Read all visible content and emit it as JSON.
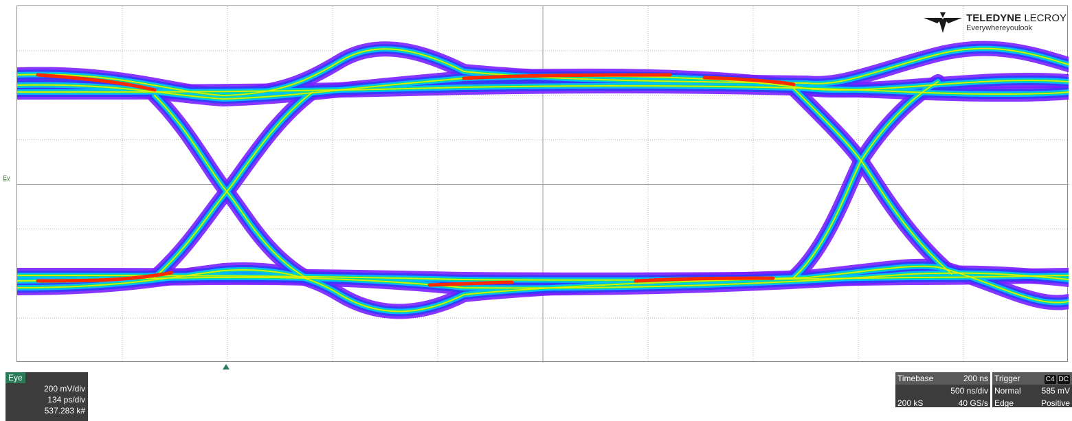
{
  "channel_label": "Ey",
  "logo": {
    "brand_bold": "TELEDYNE",
    "brand_light": "LECROY",
    "tagline": "Everywhereyoulook"
  },
  "eye_panel": {
    "tag": "Eye",
    "vdiv": "200 mV/div",
    "hdiv": "134 ps/div",
    "count": "537.283 k#"
  },
  "timebase_panel": {
    "label": "Timebase",
    "delay": "200 ns",
    "hdiv": "500 ns/div",
    "samples": "200 kS",
    "rate": "40 GS/s"
  },
  "trigger_panel": {
    "label": "Trigger",
    "channel": "C4",
    "coupling": "DC",
    "mode": "Normal",
    "level": "585 mV",
    "type": "Edge",
    "slope": "Positive"
  },
  "colors": {
    "persistence": [
      "#7a1fff",
      "#2f3dff",
      "#00c8ff",
      "#00e07a",
      "#e8f000",
      "#ff2a00"
    ],
    "panel_bg": "#3c3c3c",
    "eye_tag": "#2a7a58"
  }
}
